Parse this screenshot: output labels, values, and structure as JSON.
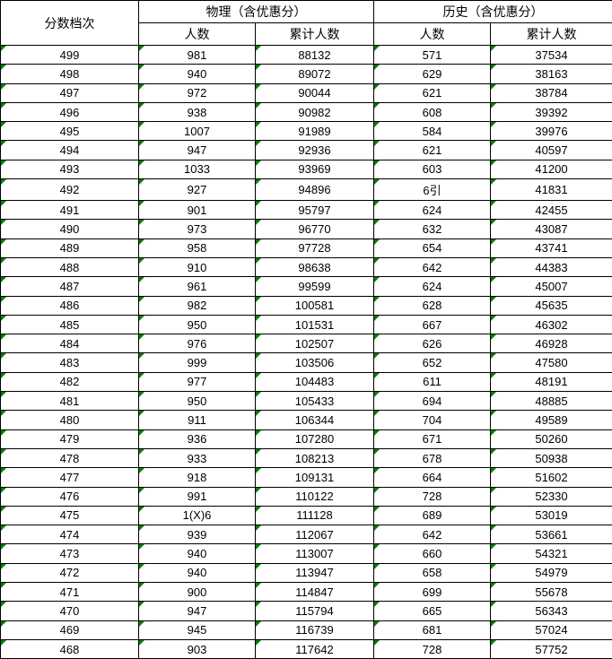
{
  "headers": {
    "score_level": "分数档次",
    "physics_group": "物理（含优惠分）",
    "history_group": "历史（含优惠分）",
    "count": "人数",
    "cumulative": "累计人数"
  },
  "columns": [
    "score",
    "phys_count",
    "phys_cum",
    "hist_count",
    "hist_cum"
  ],
  "col_classes": [
    "col-score",
    "col-phys-count",
    "col-phys-cum",
    "col-hist-count",
    "col-hist-cum"
  ],
  "rows": [
    [
      "499",
      "981",
      "88132",
      "571",
      "37534"
    ],
    [
      "498",
      "940",
      "89072",
      "629",
      "38163"
    ],
    [
      "497",
      "972",
      "90044",
      "621",
      "38784"
    ],
    [
      "496",
      "938",
      "90982",
      "608",
      "39392"
    ],
    [
      "495",
      "1007",
      "91989",
      "584",
      "39976"
    ],
    [
      "494",
      "947",
      "92936",
      "621",
      "40597"
    ],
    [
      "493",
      "1033",
      "93969",
      "603",
      "41200"
    ],
    [
      "492",
      "927",
      "94896",
      "6引",
      "41831"
    ],
    [
      "491",
      "901",
      "95797",
      "624",
      "42455"
    ],
    [
      "490",
      "973",
      "96770",
      "632",
      "43087"
    ],
    [
      "489",
      "958",
      "97728",
      "654",
      "43741"
    ],
    [
      "488",
      "910",
      "98638",
      "642",
      "44383"
    ],
    [
      "487",
      "961",
      "99599",
      "624",
      "45007"
    ],
    [
      "486",
      "982",
      "100581",
      "628",
      "45635"
    ],
    [
      "485",
      "950",
      "101531",
      "667",
      "46302"
    ],
    [
      "484",
      "976",
      "102507",
      "626",
      "46928"
    ],
    [
      "483",
      "999",
      "103506",
      "652",
      "47580"
    ],
    [
      "482",
      "977",
      "104483",
      "611",
      "48191"
    ],
    [
      "481",
      "950",
      "105433",
      "694",
      "48885"
    ],
    [
      "480",
      "911",
      "106344",
      "704",
      "49589"
    ],
    [
      "479",
      "936",
      "107280",
      "671",
      "50260"
    ],
    [
      "478",
      "933",
      "108213",
      "678",
      "50938"
    ],
    [
      "477",
      "918",
      "109131",
      "664",
      "51602"
    ],
    [
      "476",
      "991",
      "110122",
      "728",
      "52330"
    ],
    [
      "475",
      "1(X)6",
      "111128",
      "689",
      "53019"
    ],
    [
      "474",
      "939",
      "112067",
      "642",
      "53661"
    ],
    [
      "473",
      "940",
      "113007",
      "660",
      "54321"
    ],
    [
      "472",
      "940",
      "113947",
      "658",
      "54979"
    ],
    [
      "471",
      "900",
      "114847",
      "699",
      "55678"
    ],
    [
      "470",
      "947",
      "115794",
      "665",
      "56343"
    ],
    [
      "469",
      "945",
      "116739",
      "681",
      "57024"
    ],
    [
      "468",
      "903",
      "117642",
      "728",
      "57752"
    ]
  ],
  "style": {
    "corner_mark_color": "#008000",
    "border_color": "#000000",
    "background_color": "#ffffff",
    "body_fontsize": 13,
    "header_fontsize": 14
  }
}
